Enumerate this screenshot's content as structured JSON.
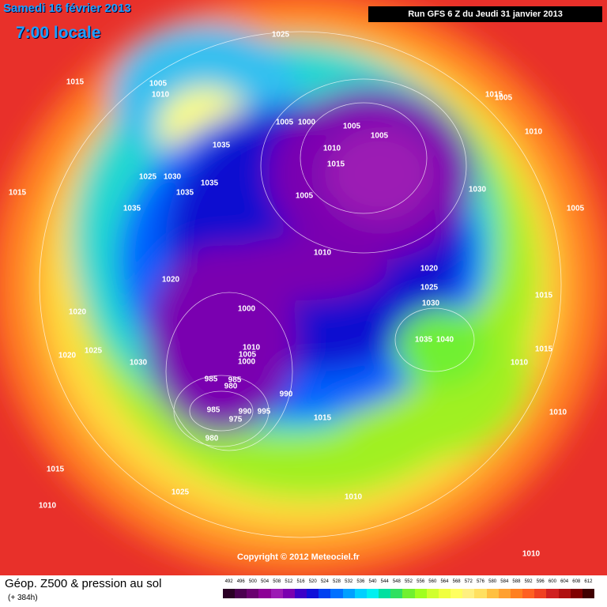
{
  "header": {
    "date": "Samedi 16 février 2013",
    "time": "7:00 locale",
    "run": "Run GFS 6 Z du Jeudi 31 janvier 2013"
  },
  "footer": {
    "title": "Géop. Z500 & pression au sol",
    "lead": "(+ 384h)",
    "copyright": "Copyright © 2012 Meteociel.fr"
  },
  "scale": {
    "labels": [
      492,
      496,
      500,
      504,
      508,
      512,
      516,
      520,
      524,
      528,
      532,
      536,
      540,
      544,
      548,
      552,
      556,
      560,
      564,
      568,
      572,
      576,
      580,
      584,
      588,
      592,
      596,
      600,
      604,
      608,
      612
    ],
    "colors": [
      "#2b0026",
      "#4b0050",
      "#6a0070",
      "#8c0096",
      "#9c1ab4",
      "#7a00b0",
      "#3c00c8",
      "#1010d8",
      "#0040f0",
      "#0070ff",
      "#00a0ff",
      "#00d0ff",
      "#00f0f0",
      "#00e0a0",
      "#30e060",
      "#70f030",
      "#a0ff20",
      "#d0ff30",
      "#f0ff40",
      "#ffff60",
      "#fff080",
      "#ffe060",
      "#ffc040",
      "#ffa030",
      "#ff8020",
      "#ff6020",
      "#f04020",
      "#d02020",
      "#b01010",
      "#800000",
      "#400000"
    ]
  },
  "isobars": [
    1025,
    1015,
    1005,
    1010,
    1035,
    1005,
    1000,
    1005,
    1005,
    1010,
    1015,
    1005,
    1010,
    1030,
    1010,
    1015,
    1005,
    1005,
    1015,
    1035,
    1025,
    1030,
    1035,
    1035,
    1020,
    1020,
    1025,
    1020,
    1030,
    1000,
    1010,
    1005,
    1000,
    985,
    985,
    980,
    990,
    985,
    975,
    990,
    995,
    980,
    1020,
    1025,
    1030,
    1035,
    1040,
    1015,
    1015,
    1010,
    1010,
    1015,
    1015,
    1010,
    1025,
    1010,
    1010
  ]
}
